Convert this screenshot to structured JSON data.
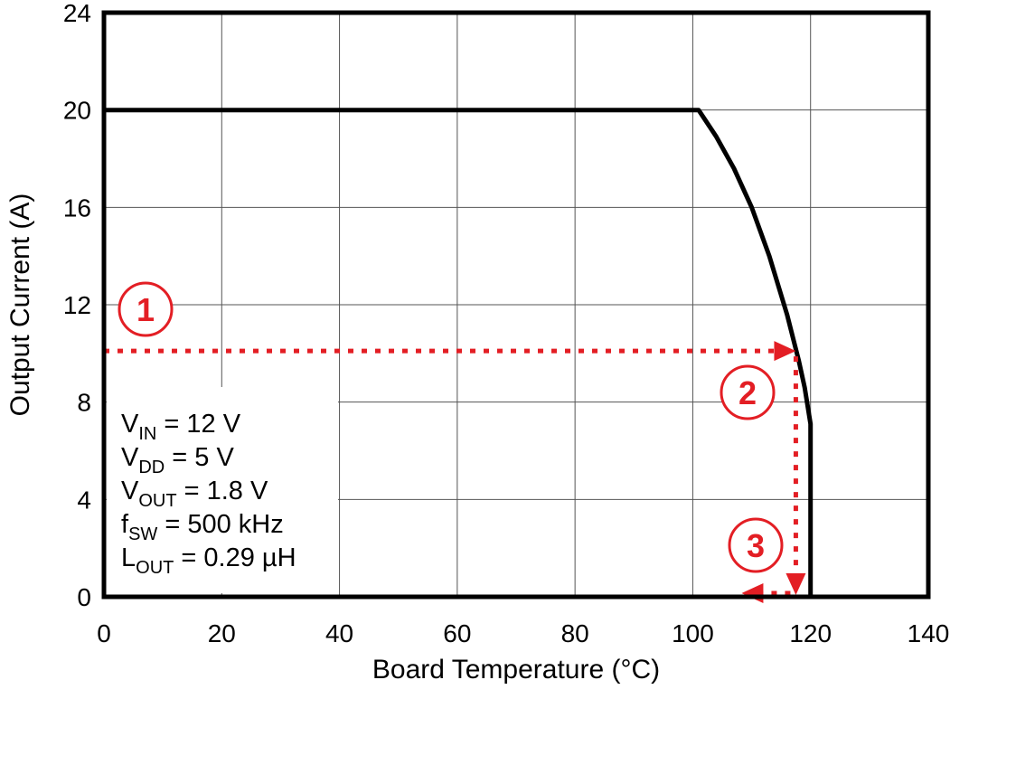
{
  "chart_data": {
    "type": "line",
    "title": "",
    "xlabel": "Board Temperature (°C)",
    "ylabel": "Output Current (A)",
    "xlim": [
      0,
      140
    ],
    "ylim": [
      0,
      24
    ],
    "xticks": [
      0,
      20,
      40,
      60,
      80,
      100,
      120,
      140
    ],
    "yticks": [
      0,
      4,
      8,
      12,
      16,
      20,
      24
    ],
    "grid": true,
    "series": [
      {
        "name": "Safe operating area",
        "color": "#000000",
        "x": [
          0,
          101,
          104,
          107,
          110,
          113,
          116,
          118,
          119,
          120,
          120
        ],
        "y": [
          20,
          20,
          18.9,
          17.6,
          16.0,
          14.0,
          11.6,
          9.7,
          8.6,
          7.1,
          0
        ]
      }
    ],
    "conditions": [
      {
        "main": "V",
        "sub": "IN",
        "rest": " = 12 V"
      },
      {
        "main": "V",
        "sub": "DD",
        "rest": " = 5 V"
      },
      {
        "main": "V",
        "sub": "OUT",
        "rest": " = 1.8 V"
      },
      {
        "main": "f",
        "sub": "SW",
        "rest": " = 500 kHz"
      },
      {
        "main": "L",
        "sub": "OUT",
        "rest": " = 0.29 µH"
      }
    ],
    "guide": {
      "color": "#e31e24",
      "current_A": 10.1,
      "temperature_C": 117.5,
      "steps": [
        "1",
        "2",
        "3"
      ]
    }
  }
}
